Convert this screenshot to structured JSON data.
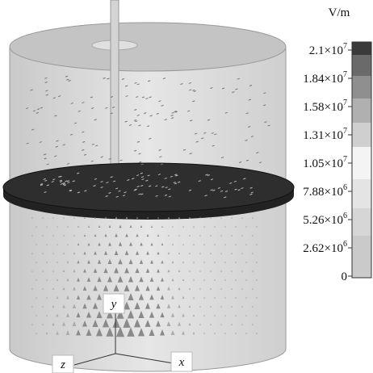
{
  "colorbar": {
    "unit": "V/m",
    "labels": [
      {
        "base": "2.1×10",
        "exp": "7"
      },
      {
        "base": "1.84×10",
        "exp": "7"
      },
      {
        "base": "1.58×10",
        "exp": "7"
      },
      {
        "base": "1.31×10",
        "exp": "7"
      },
      {
        "base": "1.05×10",
        "exp": "7"
      },
      {
        "base": "7.88×10",
        "exp": "6"
      },
      {
        "base": "5.26×10",
        "exp": "6"
      },
      {
        "base": "2.62×10",
        "exp": "6"
      },
      {
        "base": "0"
      }
    ]
  },
  "axes": {
    "y": "y",
    "x": "x",
    "z": "z"
  }
}
